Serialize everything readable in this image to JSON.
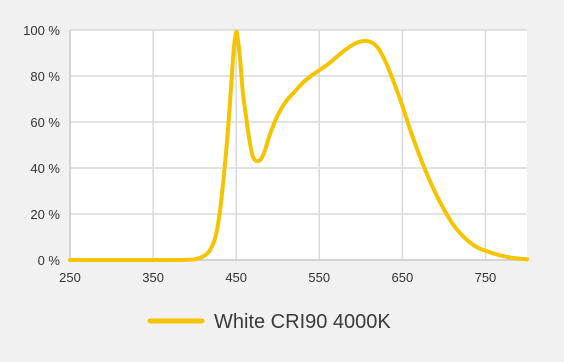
{
  "chart_data": {
    "type": "line",
    "title": "",
    "xlabel": "",
    "ylabel": "",
    "xlim": [
      250,
      800
    ],
    "ylim": [
      0,
      100
    ],
    "x_ticks": [
      250,
      350,
      450,
      550,
      650,
      750
    ],
    "x_tick_labels": [
      "250",
      "350",
      "450",
      "550",
      "650",
      "750"
    ],
    "y_ticks": [
      0,
      20,
      40,
      60,
      80,
      100
    ],
    "y_tick_labels": [
      "0 %",
      "20 %",
      "40 %",
      "60 %",
      "80 %",
      "100 %"
    ],
    "grid": true,
    "legend_position": "bottom-center",
    "series": [
      {
        "name": "White CRI90 4000K",
        "color": "#f5c400",
        "x": [
          250,
          300,
          350,
          380,
          400,
          410,
          418,
          425,
          430,
          435,
          440,
          444,
          447,
          450,
          452,
          455,
          458,
          462,
          466,
          470,
          475,
          480,
          485,
          490,
          500,
          510,
          520,
          530,
          540,
          550,
          560,
          570,
          580,
          590,
          600,
          610,
          620,
          630,
          640,
          650,
          660,
          670,
          680,
          690,
          700,
          710,
          720,
          730,
          740,
          750,
          760,
          770,
          780,
          790,
          800
        ],
        "y": [
          0,
          0,
          0,
          0,
          0.3,
          1.5,
          4,
          10,
          20,
          36,
          56,
          76,
          91,
          99,
          96,
          86,
          73,
          62,
          52,
          45,
          43,
          44,
          48,
          54,
          63,
          69,
          73,
          77,
          80,
          82.5,
          85,
          88,
          91,
          93.5,
          95,
          95,
          92.5,
          86,
          77,
          67,
          56,
          46,
          37,
          29,
          22,
          16,
          11.5,
          8,
          5.5,
          4,
          2.8,
          1.8,
          1.1,
          0.6,
          0.3
        ]
      }
    ]
  }
}
